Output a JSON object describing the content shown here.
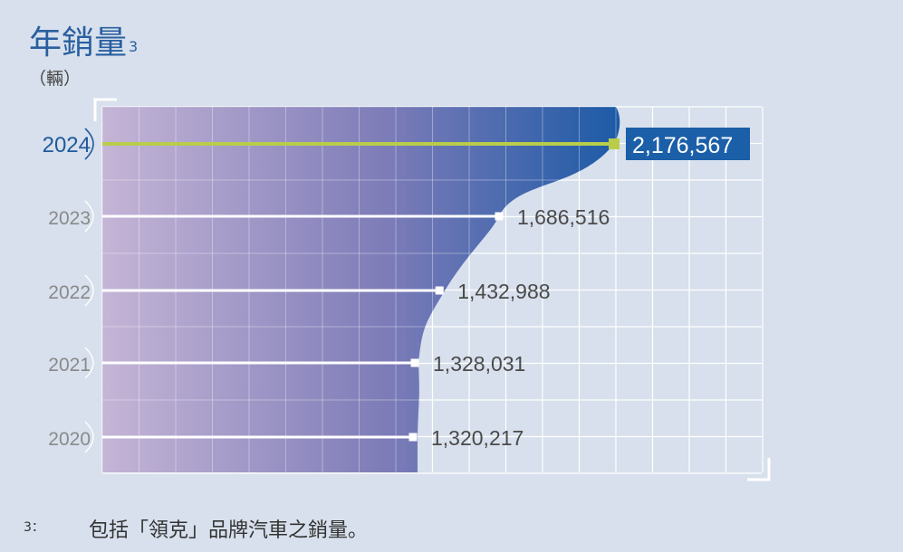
{
  "header": {
    "title": "年銷量",
    "title_footnote_mark": "3",
    "unit": "（輛）"
  },
  "footnote": {
    "mark": "3：",
    "text": "包括「領克」品牌汽車之銷量。"
  },
  "colors": {
    "background": "#d7e0ec",
    "grid": "#ffffff",
    "area_gradient_start": "#c5b5d6",
    "area_gradient_end": "#1c5aa6",
    "highlight_line": "#b9cd4a",
    "highlight_box": "#1b5fa8",
    "year_highlight": "#1f5a9e",
    "year_normal": "#8a8a8a"
  },
  "chart_data": {
    "type": "bar",
    "orientation": "horizontal",
    "title": "年銷量",
    "ylabel": "（輛）",
    "categories": [
      "2020",
      "2021",
      "2022",
      "2023",
      "2024"
    ],
    "values": [
      1320217,
      1328031,
      1432988,
      1686516,
      2176567
    ],
    "value_labels": [
      "1,320,217",
      "1,328,031",
      "1,432,988",
      "1,686,516",
      "2,176,567"
    ],
    "highlight_category": "2024",
    "grid": true,
    "filled_area": true
  }
}
